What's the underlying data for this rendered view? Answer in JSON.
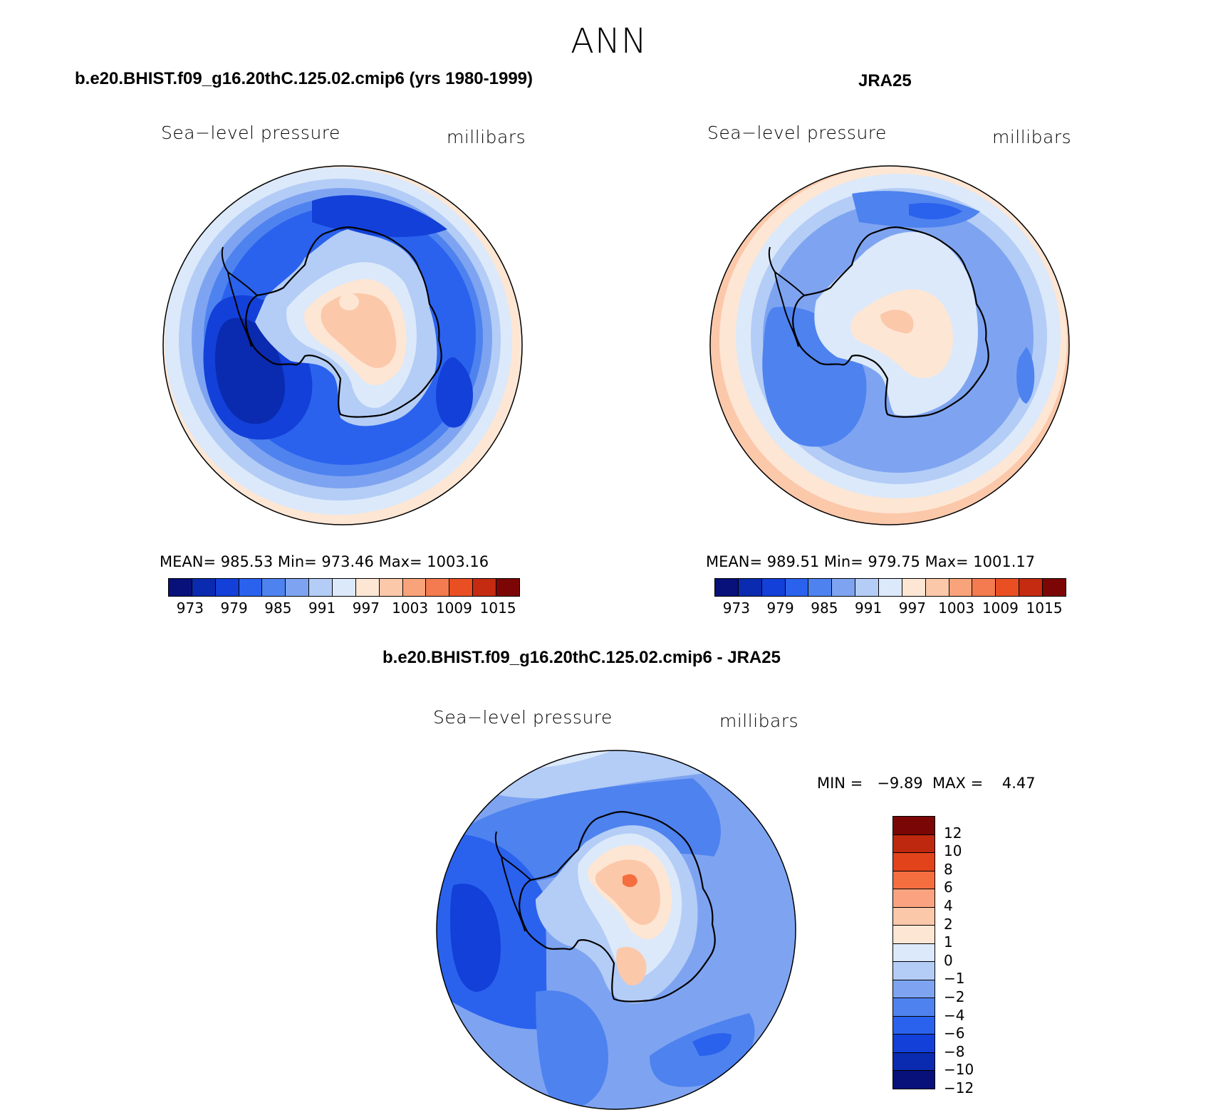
{
  "header": {
    "title": "ANN"
  },
  "colors": {
    "abs_scale": [
      "#08107a",
      "#0a2ab0",
      "#1240d8",
      "#2a62ee",
      "#4e82ef",
      "#7ea4f1",
      "#b4cdf6",
      "#dbe9fa",
      "#fde6d4",
      "#fcc8aa",
      "#f9a37b",
      "#f47a4f",
      "#ea4f23",
      "#c42b10",
      "#7c0606"
    ],
    "diff_scale": [
      "#7a0606",
      "#be280f",
      "#e2431b",
      "#f56e3f",
      "#fba380",
      "#fcc8aa",
      "#fde6d4",
      "#dbe9fa",
      "#b4cdf6",
      "#7ea4f1",
      "#4e82ef",
      "#2a62ee",
      "#1240d8",
      "#0a2ab0",
      "#08107a"
    ]
  },
  "panels": {
    "model": {
      "title": "b.e20.BHIST.f09_g16.20thC.125.02.cmip6 (yrs 1980-1999)",
      "variable": "Sea−level pressure",
      "units": "millibars",
      "stats": "MEAN= 985.53   Min= 973.46   Max= 1003.16",
      "ticks": [
        "973",
        "979",
        "985",
        "991",
        "997",
        "1003",
        "1009",
        "1015"
      ]
    },
    "obs": {
      "title": "JRA25",
      "variable": "Sea−level pressure",
      "units": "millibars",
      "stats": "MEAN= 989.51   Min= 979.75   Max= 1001.17",
      "ticks": [
        "973",
        "979",
        "985",
        "991",
        "997",
        "1003",
        "1009",
        "1015"
      ]
    },
    "diff": {
      "title": "b.e20.BHIST.f09_g16.20thC.125.02.cmip6 - JRA25",
      "variable": "Sea−level pressure",
      "units": "millibars",
      "stats": "MIN =   −9.89  MAX =    4.47",
      "ticks": [
        "12",
        "10",
        "8",
        "6",
        "4",
        "2",
        "1",
        "0",
        "−1",
        "−2",
        "−4",
        "−6",
        "−8",
        "−10",
        "−12"
      ]
    }
  },
  "chart_data": [
    {
      "type": "heatmap",
      "title": "b.e20.BHIST.f09_g16.20thC.125.02.cmip6 (yrs 1980-1999)",
      "variable": "Sea-level pressure",
      "units": "millibars",
      "projection": "south polar stereographic",
      "mean": 985.53,
      "min": 973.46,
      "max": 1003.16,
      "contour_levels": [
        970,
        973,
        976,
        979,
        982,
        985,
        988,
        991,
        994,
        997,
        1000,
        1003,
        1006,
        1009,
        1012,
        1015
      ],
      "colorbar_labels": [
        "973",
        "979",
        "985",
        "991",
        "997",
        "1003",
        "1009",
        "1015"
      ]
    },
    {
      "type": "heatmap",
      "title": "JRA25",
      "variable": "Sea-level pressure",
      "units": "millibars",
      "projection": "south polar stereographic",
      "mean": 989.51,
      "min": 979.75,
      "max": 1001.17,
      "contour_levels": [
        970,
        973,
        976,
        979,
        982,
        985,
        988,
        991,
        994,
        997,
        1000,
        1003,
        1006,
        1009,
        1012,
        1015
      ],
      "colorbar_labels": [
        "973",
        "979",
        "985",
        "991",
        "997",
        "1003",
        "1009",
        "1015"
      ]
    },
    {
      "type": "heatmap",
      "title": "b.e20.BHIST.f09_g16.20thC.125.02.cmip6 - JRA25",
      "variable": "Sea-level pressure",
      "units": "millibars",
      "projection": "south polar stereographic",
      "min": -9.89,
      "max": 4.47,
      "contour_levels": [
        -12,
        -10,
        -8,
        -6,
        -4,
        -2,
        -1,
        0,
        1,
        2,
        4,
        6,
        8,
        10,
        12
      ],
      "colorbar_labels": [
        "12",
        "10",
        "8",
        "6",
        "4",
        "2",
        "1",
        "0",
        "−1",
        "−2",
        "−4",
        "−6",
        "−8",
        "−10",
        "−12"
      ]
    }
  ]
}
